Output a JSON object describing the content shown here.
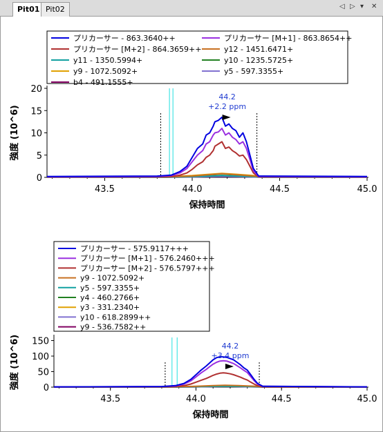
{
  "tabs": [
    {
      "label": "Pit01",
      "active": true
    },
    {
      "label": "Pit02",
      "active": false
    }
  ],
  "tab_controls": {
    "prev": "◁",
    "next": "▷",
    "menu": "▾",
    "close": "✕"
  },
  "chart_data": [
    {
      "type": "line",
      "xlabel": "保持時間",
      "ylabel": "強度 (10^6)",
      "xlim": [
        43.17,
        45.0
      ],
      "ylim": [
        0,
        20
      ],
      "xticks": [
        "43.5",
        "44.0",
        "44.5",
        "45.0"
      ],
      "yticks": [
        "0",
        "5",
        "10",
        "15",
        "20"
      ],
      "annotation": {
        "rt": "44.2",
        "ppm": "+2.2 ppm"
      },
      "boundaries": [
        43.82,
        44.37
      ],
      "id_lines": [
        43.87,
        43.89
      ],
      "legend": [
        {
          "name": "プリカーサー - 863.3640++",
          "color": "#0000e0"
        },
        {
          "name": "プリカーサー [M+1] - 863.8654++",
          "color": "#9a30e0"
        },
        {
          "name": "プリカーサー [M+2] - 864.3659++",
          "color": "#b03030"
        },
        {
          "name": "y12 - 1451.6471+",
          "color": "#c87020"
        },
        {
          "name": "y11 - 1350.5994+",
          "color": "#10a0a0"
        },
        {
          "name": "y10 - 1235.5725+",
          "color": "#208020"
        },
        {
          "name": "y9 - 1072.5092+",
          "color": "#e0a000"
        },
        {
          "name": "y5 - 597.3355+",
          "color": "#8070d0"
        },
        {
          "name": "b4 - 491.1555+",
          "color": "#800060"
        }
      ],
      "series": [
        {
          "name": "プリカーサー - 863.3640++",
          "color": "#0000e0",
          "x": [
            43.17,
            43.8,
            43.88,
            43.93,
            43.97,
            44.0,
            44.03,
            44.06,
            44.08,
            44.1,
            44.12,
            44.13,
            44.15,
            44.17,
            44.19,
            44.21,
            44.23,
            44.25,
            44.27,
            44.29,
            44.31,
            44.33,
            44.35,
            44.38,
            45.0
          ],
          "y": [
            0.2,
            0.3,
            0.5,
            1.3,
            2.5,
            4.5,
            6.5,
            7.5,
            9.5,
            10,
            11.5,
            12.5,
            12.8,
            13.5,
            11.5,
            12,
            11,
            10.5,
            9,
            10,
            8,
            5,
            2,
            0.3,
            0.2
          ]
        },
        {
          "name": "プリカーサー [M+1] - 863.8654++",
          "color": "#9a30e0",
          "x": [
            43.17,
            43.8,
            43.88,
            43.93,
            43.97,
            44.0,
            44.03,
            44.06,
            44.08,
            44.1,
            44.12,
            44.13,
            44.15,
            44.17,
            44.19,
            44.21,
            44.23,
            44.25,
            44.27,
            44.29,
            44.31,
            44.33,
            44.35,
            44.38,
            45.0
          ],
          "y": [
            0.1,
            0.2,
            0.4,
            1,
            2,
            3.5,
            5,
            6,
            7.5,
            8,
            9.5,
            10,
            10.2,
            11,
            9.5,
            10,
            9,
            8.5,
            7.5,
            8,
            6.5,
            4,
            1.5,
            0.2,
            0.1
          ]
        },
        {
          "name": "プリカーサー [M+2] - 864.3659++",
          "color": "#b03030",
          "x": [
            43.17,
            43.8,
            43.88,
            43.93,
            43.97,
            44.0,
            44.03,
            44.06,
            44.08,
            44.1,
            44.12,
            44.13,
            44.15,
            44.17,
            44.19,
            44.21,
            44.23,
            44.25,
            44.27,
            44.29,
            44.31,
            44.33,
            44.35,
            44.38,
            45.0
          ],
          "y": [
            0.1,
            0.1,
            0.2,
            0.5,
            1,
            1.8,
            2.8,
            3.5,
            4.5,
            5,
            6,
            7,
            7.5,
            8,
            6.5,
            6.8,
            6,
            5.5,
            4.8,
            5,
            4,
            2.5,
            1,
            0.1,
            0.1
          ]
        },
        {
          "name": "y12 - 1451.6471+",
          "color": "#c87020",
          "x": [
            43.17,
            43.85,
            44.0,
            44.1,
            44.17,
            44.25,
            44.35,
            44.4,
            45.0
          ],
          "y": [
            0.05,
            0.1,
            0.3,
            0.6,
            0.8,
            0.6,
            0.3,
            0.1,
            0.05
          ]
        },
        {
          "name": "y11 - 1350.5994+",
          "color": "#10a0a0",
          "x": [
            43.17,
            43.85,
            44.0,
            44.1,
            44.17,
            44.25,
            44.35,
            44.4,
            45.0
          ],
          "y": [
            0.03,
            0.05,
            0.15,
            0.3,
            0.4,
            0.3,
            0.15,
            0.05,
            0.03
          ]
        },
        {
          "name": "y10 - 1235.5725+",
          "color": "#208020",
          "x": [
            43.17,
            43.85,
            44.0,
            44.1,
            44.17,
            44.25,
            44.35,
            44.4,
            45.0
          ],
          "y": [
            0.03,
            0.05,
            0.2,
            0.35,
            0.45,
            0.35,
            0.2,
            0.05,
            0.03
          ]
        },
        {
          "name": "y9 - 1072.5092+",
          "color": "#e0a000",
          "x": [
            43.17,
            43.85,
            44.0,
            44.1,
            44.17,
            44.25,
            44.35,
            44.4,
            45.0
          ],
          "y": [
            0.05,
            0.1,
            0.4,
            0.7,
            0.9,
            0.7,
            0.4,
            0.1,
            0.05
          ]
        },
        {
          "name": "y5 - 597.3355+",
          "color": "#8070d0",
          "x": [
            43.17,
            43.85,
            44.0,
            44.1,
            44.17,
            44.25,
            44.35,
            44.4,
            45.0
          ],
          "y": [
            0.02,
            0.04,
            0.1,
            0.2,
            0.25,
            0.2,
            0.1,
            0.04,
            0.02
          ]
        },
        {
          "name": "b4 - 491.1555+",
          "color": "#800060",
          "x": [
            43.17,
            43.85,
            44.0,
            44.1,
            44.17,
            44.25,
            44.35,
            44.4,
            45.0
          ],
          "y": [
            0.02,
            0.03,
            0.08,
            0.15,
            0.2,
            0.15,
            0.08,
            0.03,
            0.02
          ]
        }
      ]
    },
    {
      "type": "line",
      "xlabel": "保持時間",
      "ylabel": "強度 (10^6)",
      "xlim": [
        43.17,
        45.0
      ],
      "ylim": [
        0,
        160
      ],
      "xticks": [
        "43.5",
        "44.0",
        "44.5",
        "45.0"
      ],
      "yticks": [
        "0",
        "50",
        "100",
        "150"
      ],
      "annotation": {
        "rt": "44.2",
        "ppm": "+3.4 ppm"
      },
      "boundaries": [
        43.82,
        44.37
      ],
      "id_lines": [
        43.86,
        43.89
      ],
      "legend": [
        {
          "name": "プリカーサー - 575.9117+++",
          "color": "#0000e0"
        },
        {
          "name": "プリカーサー [M+1] - 576.2460+++",
          "color": "#9a30e0"
        },
        {
          "name": "プリカーサー [M+2] - 576.5797+++",
          "color": "#b03030"
        },
        {
          "name": "y9 - 1072.5092+",
          "color": "#c87020"
        },
        {
          "name": "y5 - 597.3355+",
          "color": "#10a0a0"
        },
        {
          "name": "y4 - 460.2766+",
          "color": "#208020"
        },
        {
          "name": "y3 - 331.2340+",
          "color": "#e0a000"
        },
        {
          "name": "y10 - 618.2899++",
          "color": "#8070d0"
        },
        {
          "name": "y9 - 536.7582++",
          "color": "#800060"
        }
      ],
      "series": [
        {
          "name": "プリカーサー - 575.9117+++",
          "color": "#0000e0",
          "x": [
            43.17,
            43.8,
            43.88,
            43.93,
            43.97,
            44.0,
            44.03,
            44.06,
            44.08,
            44.1,
            44.12,
            44.14,
            44.16,
            44.18,
            44.2,
            44.22,
            44.24,
            44.26,
            44.28,
            44.3,
            44.32,
            44.34,
            44.36,
            44.39,
            45.0
          ],
          "y": [
            1,
            2,
            5,
            12,
            25,
            40,
            55,
            68,
            78,
            88,
            95,
            98,
            97,
            96,
            92,
            88,
            80,
            72,
            62,
            55,
            40,
            25,
            12,
            3,
            1
          ]
        },
        {
          "name": "プリカーサー [M+1] - 576.2460+++",
          "color": "#9a30e0",
          "x": [
            43.17,
            43.8,
            43.88,
            43.93,
            43.97,
            44.0,
            44.03,
            44.06,
            44.08,
            44.1,
            44.12,
            44.14,
            44.16,
            44.18,
            44.2,
            44.22,
            44.24,
            44.26,
            44.28,
            44.3,
            44.32,
            44.34,
            44.36,
            44.39,
            45.0
          ],
          "y": [
            1,
            2,
            4,
            10,
            20,
            33,
            46,
            57,
            66,
            74,
            80,
            84,
            85,
            84,
            80,
            76,
            69,
            62,
            54,
            47,
            34,
            21,
            10,
            3,
            1
          ]
        },
        {
          "name": "プリカーサー [M+2] - 576.5797+++",
          "color": "#b03030",
          "x": [
            43.17,
            43.8,
            43.88,
            43.93,
            43.97,
            44.0,
            44.03,
            44.06,
            44.08,
            44.1,
            44.12,
            44.14,
            44.16,
            44.18,
            44.2,
            44.22,
            44.24,
            44.26,
            44.28,
            44.3,
            44.32,
            44.34,
            44.36,
            44.39,
            45.0
          ],
          "y": [
            0.5,
            1,
            2,
            5,
            10,
            16,
            22,
            28,
            33,
            38,
            42,
            45,
            46,
            45,
            43,
            40,
            36,
            32,
            27,
            23,
            16,
            10,
            5,
            1,
            0.5
          ]
        },
        {
          "name": "y9 - 1072.5092+",
          "color": "#c87020",
          "x": [
            43.17,
            43.85,
            44.0,
            44.1,
            44.17,
            44.25,
            44.35,
            44.4,
            45.0
          ],
          "y": [
            0.5,
            1,
            3,
            5,
            6,
            5,
            3,
            1,
            0.5
          ]
        },
        {
          "name": "y5 - 597.3355+",
          "color": "#10a0a0",
          "x": [
            43.17,
            43.85,
            44.0,
            44.1,
            44.17,
            44.25,
            44.35,
            44.4,
            45.0
          ],
          "y": [
            0.3,
            0.5,
            1.5,
            2.5,
            3,
            2.5,
            1.5,
            0.5,
            0.3
          ]
        },
        {
          "name": "y4 - 460.2766+",
          "color": "#208020",
          "x": [
            43.17,
            43.85,
            44.0,
            44.1,
            44.17,
            44.25,
            44.35,
            44.4,
            45.0
          ],
          "y": [
            0.3,
            0.5,
            1.5,
            2.5,
            3,
            2.5,
            1.5,
            0.5,
            0.3
          ]
        },
        {
          "name": "y3 - 331.2340+",
          "color": "#e0a000",
          "x": [
            43.17,
            43.85,
            44.0,
            44.1,
            44.17,
            44.25,
            44.35,
            44.4,
            45.0
          ],
          "y": [
            0.5,
            1,
            2.5,
            4,
            5,
            4,
            2.5,
            1,
            0.5
          ]
        },
        {
          "name": "y10 - 618.2899++",
          "color": "#8070d0",
          "x": [
            43.17,
            43.85,
            44.0,
            44.1,
            44.17,
            44.25,
            44.35,
            44.4,
            45.0
          ],
          "y": [
            0.2,
            0.4,
            1,
            2,
            2.5,
            2,
            1,
            0.4,
            0.2
          ]
        },
        {
          "name": "y9 - 536.7582++",
          "color": "#800060",
          "x": [
            43.17,
            43.85,
            44.0,
            44.1,
            44.17,
            44.25,
            44.35,
            44.4,
            45.0
          ],
          "y": [
            0.2,
            0.3,
            0.8,
            1.5,
            2,
            1.5,
            0.8,
            0.3,
            0.2
          ]
        }
      ]
    }
  ]
}
